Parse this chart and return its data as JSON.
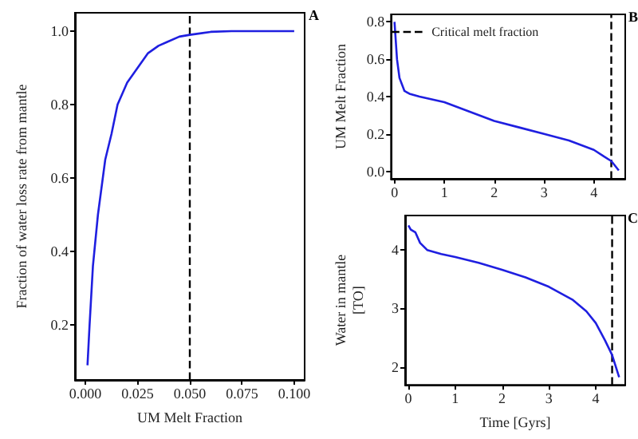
{
  "chart_data": [
    {
      "type": "line",
      "xlabel": "UM Melt Fraction",
      "ylabel": "Fraction of water loss rate from mantle",
      "annotations": [
        "A"
      ],
      "xlim": [
        -0.005,
        0.105
      ],
      "xticks": [
        {
          "value": 0,
          "label": "0.000"
        },
        0.025,
        {
          "value": 0.05,
          "label": "0.050"
        },
        0.075,
        {
          "value": 0.1,
          "label": "0.100"
        }
      ],
      "ylim": [
        0.05,
        1.05
      ],
      "yticks": [
        0.2,
        0.4,
        0.6,
        0.8,
        {
          "value": 1,
          "label": "1.0"
        }
      ],
      "grid": false,
      "x": [
        0.001,
        0.002,
        0.0036,
        0.006,
        0.0095,
        0.0125,
        0.0154,
        0.02,
        0.025,
        0.03,
        0.035,
        0.039,
        0.045,
        0.05,
        0.06,
        0.07,
        0.08,
        0.09,
        0.1
      ],
      "series": [
        {
          "color": "#1f1fe0",
          "values": [
            0.09,
            0.2,
            0.36,
            0.5,
            0.65,
            0.72,
            0.8,
            0.86,
            0.9,
            0.94,
            0.96,
            0.97,
            0.985,
            0.99,
            0.998,
            1.0,
            1.0,
            1.0,
            1.0
          ]
        }
      ],
      "ref_lines": [
        {
          "axis": "x",
          "value": 0.05,
          "color": "#000000",
          "line_style": "dashed"
        }
      ]
    },
    {
      "type": "line",
      "ylabel": "UM Melt Fraction",
      "annotations": [
        "B"
      ],
      "legend": "top left",
      "xlim": [
        -0.07,
        4.63
      ],
      "xticks": [
        0,
        1,
        2,
        3,
        4
      ],
      "ylim": [
        -0.04,
        0.84
      ],
      "yticks": [
        {
          "value": 0,
          "label": "0.0"
        },
        0.2,
        0.4,
        0.6,
        0.8
      ],
      "grid": false,
      "x": [
        0,
        0.05,
        0.1,
        0.2,
        0.3,
        0.5,
        1,
        1.5,
        2,
        2.5,
        3,
        3.5,
        4,
        4.2,
        4.35,
        4.5
      ],
      "series": [
        {
          "color": "#1f1fe0",
          "values": [
            0.8,
            0.6,
            0.5,
            0.43,
            0.415,
            0.4,
            0.37,
            0.32,
            0.27,
            0.235,
            0.2,
            0.165,
            0.115,
            0.08,
            0.055,
            0.005
          ]
        }
      ],
      "ref_lines": [
        {
          "axis": "x",
          "value": 4.35,
          "label": "Critical melt fraction",
          "color": "#000000",
          "line_style": "dashed"
        }
      ]
    },
    {
      "type": "line",
      "xlabel": "Time [Gyrs]",
      "ylabel": "Water in mantle\n[TO]",
      "annotations": [
        "C"
      ],
      "xlim": [
        -0.07,
        4.63
      ],
      "xticks": [
        0,
        1,
        2,
        3,
        4
      ],
      "ylim": [
        1.69,
        4.59
      ],
      "yticks": [
        2,
        3,
        4
      ],
      "grid": false,
      "x": [
        0,
        0.05,
        0.15,
        0.25,
        0.4,
        0.7,
        1,
        1.5,
        2,
        2.5,
        3,
        3.5,
        3.8,
        4,
        4.2,
        4.35,
        4.5
      ],
      "series": [
        {
          "color": "#1f1fe0",
          "values": [
            4.42,
            4.35,
            4.3,
            4.12,
            4.0,
            3.93,
            3.88,
            3.78,
            3.66,
            3.53,
            3.37,
            3.15,
            2.95,
            2.75,
            2.45,
            2.2,
            1.82
          ]
        }
      ],
      "ref_lines": [
        {
          "axis": "x",
          "value": 4.35,
          "color": "#000000",
          "line_style": "dashed"
        }
      ]
    }
  ]
}
